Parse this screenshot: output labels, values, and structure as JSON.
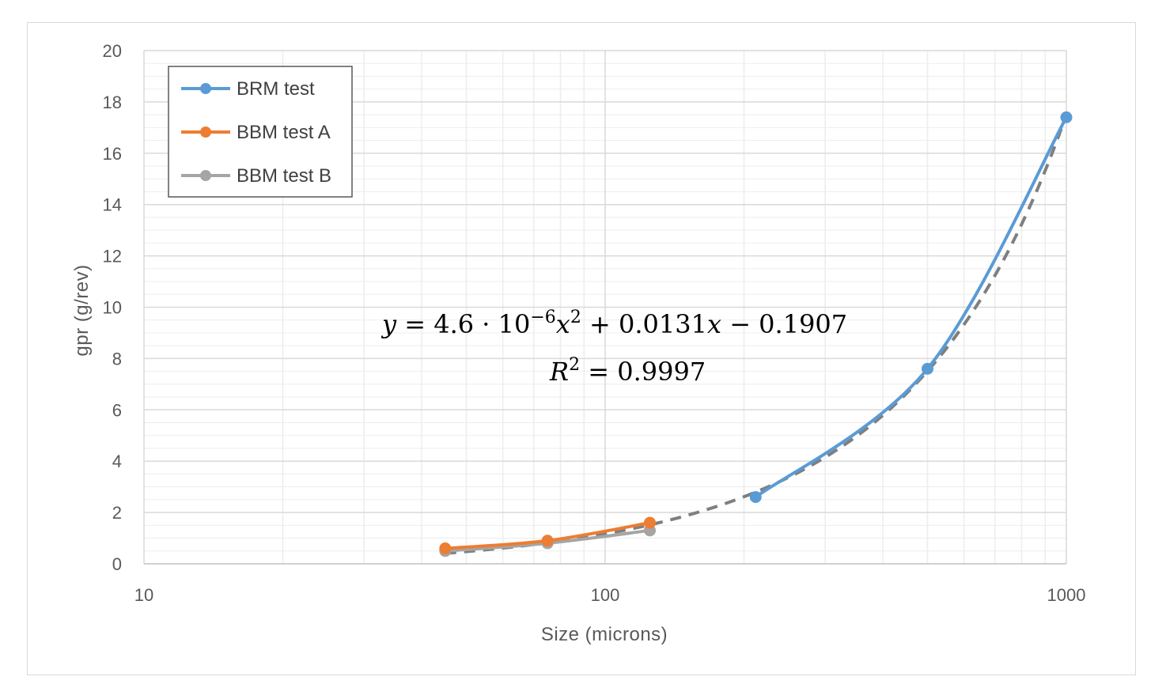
{
  "chart_data": {
    "type": "line",
    "xlabel": "Size (microns)",
    "ylabel": "gpr  (g/rev)",
    "x_scale": "log",
    "xlim": [
      10,
      1000
    ],
    "ylim": [
      0,
      20
    ],
    "x_ticks": [
      10,
      100,
      1000
    ],
    "x_tick_labels": [
      "10",
      "100",
      "1000"
    ],
    "y_ticks": [
      0,
      2,
      4,
      6,
      8,
      10,
      12,
      14,
      16,
      18,
      20
    ],
    "y_tick_labels": [
      "0",
      "2",
      "4",
      "6",
      "8",
      "10",
      "12",
      "14",
      "16",
      "18",
      "20"
    ],
    "grid": true,
    "legend_position": "top-left",
    "series": [
      {
        "name": "BRM test",
        "color": "#5b9bd5",
        "x": [
          212,
          500,
          1000
        ],
        "y": [
          2.6,
          7.6,
          17.4
        ]
      },
      {
        "name": "BBM test A",
        "color": "#ed7d31",
        "x": [
          45,
          75,
          125
        ],
        "y": [
          0.6,
          0.9,
          1.6
        ]
      },
      {
        "name": "BBM test B",
        "color": "#a5a5a5",
        "x": [
          45,
          75,
          125
        ],
        "y": [
          0.5,
          0.8,
          1.3
        ]
      }
    ],
    "trendline": {
      "type": "polynomial",
      "order": 2,
      "coefficients": [
        4.6e-06,
        0.0131,
        -0.1907
      ],
      "color": "#7f7f7f",
      "style": "dashed",
      "x_range": [
        45,
        1000
      ]
    },
    "annotations": {
      "equation_parts": [
        "𝑦 = 4.6 · 10",
        "−6",
        "𝑥",
        "2",
        " + 0.0131𝑥 − 0.1907"
      ],
      "r2_parts": [
        "𝑅",
        "2",
        " = 0.9997"
      ]
    }
  }
}
